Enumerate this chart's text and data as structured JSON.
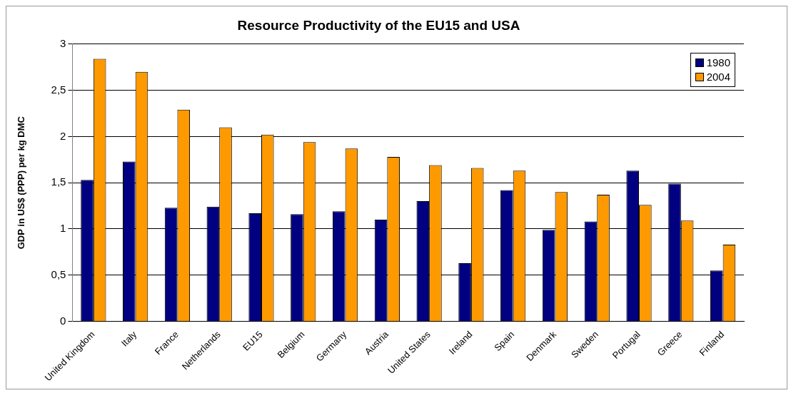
{
  "chart_data": {
    "type": "bar",
    "title": "Resource Productivity of the EU15 and USA",
    "ylabel": "GDP in US$ (PPP) per kg DMC",
    "categories": [
      "United Kingdom",
      "Italy",
      "France",
      "Netherlands",
      "EU15",
      "Belgium",
      "Germany",
      "Austria",
      "United States",
      "Ireland",
      "Spain",
      "Denmark",
      "Sweden",
      "Portugal",
      "Greece",
      "Finland"
    ],
    "series": [
      {
        "name": "1980",
        "color": "#000080",
        "values": [
          1.53,
          1.73,
          1.23,
          1.24,
          1.17,
          1.16,
          1.19,
          1.1,
          1.3,
          0.63,
          1.42,
          0.99,
          1.08,
          1.63,
          1.49,
          0.55
        ]
      },
      {
        "name": "2004",
        "color": "#ff9900",
        "values": [
          2.84,
          2.7,
          2.29,
          2.1,
          2.02,
          1.94,
          1.87,
          1.78,
          1.69,
          1.66,
          1.63,
          1.4,
          1.37,
          1.26,
          1.09,
          0.83
        ]
      }
    ],
    "ylim": [
      0,
      3
    ],
    "yticks": [
      0,
      {
        "value": 0.5,
        "label": "0,5"
      },
      1,
      {
        "value": 1.5,
        "label": "1,5"
      },
      2,
      {
        "value": 2.5,
        "label": "2,5"
      },
      3
    ],
    "grid": "y",
    "legend": "top right"
  }
}
